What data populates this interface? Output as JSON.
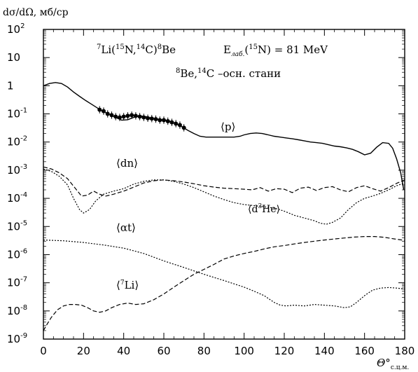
{
  "chart_data": {
    "type": "line",
    "title": "",
    "ylabel": {
      "main": "dσ/dΩ, мб/ср"
    },
    "xlabel": {
      "main": "Θ°",
      "sub": "с.ц.м."
    },
    "xlim": [
      0,
      180
    ],
    "ylim": [
      1e-09,
      100
    ],
    "yscale": "log",
    "x_ticks": [
      0,
      20,
      40,
      60,
      80,
      100,
      120,
      140,
      160,
      180
    ],
    "y_ticks": [
      {
        "value": 1e-09,
        "base": "10",
        "exp": "-9"
      },
      {
        "value": 1e-08,
        "base": "10",
        "exp": "-8"
      },
      {
        "value": 1e-07,
        "base": "10",
        "exp": "-7"
      },
      {
        "value": 1e-06,
        "base": "10",
        "exp": "-6"
      },
      {
        "value": 1e-05,
        "base": "10",
        "exp": "-5"
      },
      {
        "value": 0.0001,
        "base": "10",
        "exp": "-4"
      },
      {
        "value": 0.001,
        "base": "10",
        "exp": "-3"
      },
      {
        "value": 0.01,
        "base": "10",
        "exp": "-2"
      },
      {
        "value": 0.1,
        "base": "10",
        "exp": "-1"
      },
      {
        "value": 1,
        "base": "1",
        "exp": ""
      },
      {
        "value": 10,
        "base": "10",
        "exp": ""
      },
      {
        "value": 100,
        "base": "10",
        "exp": "2"
      }
    ],
    "reaction": {
      "r1": "Li(",
      "r2": "N,",
      "r3": "C)",
      "r4": "Be",
      "s1": "7",
      "s2": "15",
      "s3": "14",
      "s4": "8"
    },
    "energy": {
      "e1": "E",
      "e1sub": "лаб.",
      "e2": "(",
      "e2sup": "15",
      "e3": "N)  =  81  MeV"
    },
    "states": {
      "s1sup": "8",
      "s1": "Be,",
      "s2sup": "14",
      "s2": "C  –осн. стани"
    },
    "curve_labels": [
      {
        "id": "p",
        "text": "⟨p⟩"
      },
      {
        "id": "dn",
        "text": "⟨dn⟩"
      },
      {
        "id": "d3he",
        "text1": "⟨d",
        "sup": "3",
        "text2": "He⟩"
      },
      {
        "id": "at",
        "text": "⟨αt⟩"
      },
      {
        "id": "li7",
        "text1": "⟨",
        "sup": "7",
        "text2": "Li⟩"
      }
    ],
    "series": [
      {
        "id": "p",
        "style": "solid",
        "points": [
          [
            0,
            1.0
          ],
          [
            3,
            1.2
          ],
          [
            6,
            1.3
          ],
          [
            9,
            1.2
          ],
          [
            12,
            0.9
          ],
          [
            15,
            0.6
          ],
          [
            18,
            0.42
          ],
          [
            21,
            0.3
          ],
          [
            24,
            0.22
          ],
          [
            27,
            0.16
          ],
          [
            30,
            0.12
          ],
          [
            33,
            0.095
          ],
          [
            36,
            0.075
          ],
          [
            39,
            0.06
          ],
          [
            42,
            0.062
          ],
          [
            45,
            0.075
          ],
          [
            48,
            0.085
          ],
          [
            51,
            0.08
          ],
          [
            54,
            0.07
          ],
          [
            57,
            0.065
          ],
          [
            60,
            0.06
          ],
          [
            63,
            0.055
          ],
          [
            66,
            0.045
          ],
          [
            69,
            0.035
          ],
          [
            72,
            0.026
          ],
          [
            75,
            0.02
          ],
          [
            78,
            0.016
          ],
          [
            81,
            0.015
          ],
          [
            85,
            0.015
          ],
          [
            90,
            0.015
          ],
          [
            95,
            0.015
          ],
          [
            98,
            0.016
          ],
          [
            100,
            0.018
          ],
          [
            103,
            0.02
          ],
          [
            106,
            0.021
          ],
          [
            109,
            0.02
          ],
          [
            112,
            0.018
          ],
          [
            115,
            0.016
          ],
          [
            118,
            0.015
          ],
          [
            121,
            0.014
          ],
          [
            124,
            0.013
          ],
          [
            127,
            0.012
          ],
          [
            130,
            0.011
          ],
          [
            133,
            0.01
          ],
          [
            136,
            0.0095
          ],
          [
            139,
            0.009
          ],
          [
            142,
            0.008
          ],
          [
            145,
            0.0072
          ],
          [
            148,
            0.0068
          ],
          [
            151,
            0.0062
          ],
          [
            154,
            0.0055
          ],
          [
            157,
            0.0045
          ],
          [
            160,
            0.0035
          ],
          [
            163,
            0.004
          ],
          [
            166,
            0.0065
          ],
          [
            169,
            0.0095
          ],
          [
            172,
            0.009
          ],
          [
            174,
            0.006
          ],
          [
            176,
            0.0025
          ],
          [
            178,
            0.0008
          ],
          [
            179.5,
            0.0002
          ]
        ]
      },
      {
        "id": "dn",
        "style": "dashed",
        "points": [
          [
            0,
            0.0013
          ],
          [
            4,
            0.0011
          ],
          [
            8,
            0.0008
          ],
          [
            12,
            0.0005
          ],
          [
            16,
            0.00022
          ],
          [
            19,
            0.00012
          ],
          [
            22,
            0.00013
          ],
          [
            25,
            0.00018
          ],
          [
            28,
            0.00014
          ],
          [
            31,
            0.00012
          ],
          [
            35,
            0.00014
          ],
          [
            40,
            0.00018
          ],
          [
            45,
            0.00025
          ],
          [
            50,
            0.00035
          ],
          [
            55,
            0.00042
          ],
          [
            60,
            0.00045
          ],
          [
            65,
            0.00042
          ],
          [
            70,
            0.00038
          ],
          [
            75,
            0.00033
          ],
          [
            80,
            0.00028
          ],
          [
            85,
            0.00025
          ],
          [
            90,
            0.00023
          ],
          [
            95,
            0.00022
          ],
          [
            100,
            0.00021
          ],
          [
            104,
            0.0002
          ],
          [
            108,
            0.00024
          ],
          [
            112,
            0.00018
          ],
          [
            116,
            0.00022
          ],
          [
            120,
            0.00021
          ],
          [
            124,
            0.00016
          ],
          [
            128,
            0.00023
          ],
          [
            132,
            0.00025
          ],
          [
            136,
            0.00019
          ],
          [
            140,
            0.00024
          ],
          [
            144,
            0.00026
          ],
          [
            148,
            0.0002
          ],
          [
            152,
            0.00017
          ],
          [
            156,
            0.00024
          ],
          [
            160,
            0.00028
          ],
          [
            164,
            0.00022
          ],
          [
            168,
            0.00018
          ],
          [
            172,
            0.00024
          ],
          [
            176,
            0.00034
          ],
          [
            180,
            0.00045
          ]
        ]
      },
      {
        "id": "d3he",
        "style": "dotted",
        "points": [
          [
            0,
            0.0011
          ],
          [
            4,
            0.0009
          ],
          [
            8,
            0.0006
          ],
          [
            12,
            0.0003
          ],
          [
            15,
            0.0001
          ],
          [
            18,
            4e-05
          ],
          [
            20,
            3e-05
          ],
          [
            23,
            4e-05
          ],
          [
            26,
            8e-05
          ],
          [
            30,
            0.00014
          ],
          [
            35,
            0.00018
          ],
          [
            40,
            0.00022
          ],
          [
            45,
            0.00032
          ],
          [
            50,
            0.0004
          ],
          [
            55,
            0.00045
          ],
          [
            60,
            0.00045
          ],
          [
            65,
            0.0004
          ],
          [
            70,
            0.00032
          ],
          [
            75,
            0.00024
          ],
          [
            80,
            0.00017
          ],
          [
            85,
            0.00012
          ],
          [
            90,
            9e-05
          ],
          [
            95,
            7e-05
          ],
          [
            100,
            6e-05
          ],
          [
            105,
            5.5e-05
          ],
          [
            110,
            5e-05
          ],
          [
            115,
            4.5e-05
          ],
          [
            120,
            3.5e-05
          ],
          [
            125,
            2.5e-05
          ],
          [
            130,
            2e-05
          ],
          [
            135,
            1.6e-05
          ],
          [
            138,
            1.3e-05
          ],
          [
            141,
            1.2e-05
          ],
          [
            144,
            1.4e-05
          ],
          [
            148,
            2e-05
          ],
          [
            152,
            4e-05
          ],
          [
            156,
            7e-05
          ],
          [
            160,
            0.0001
          ],
          [
            164,
            0.00012
          ],
          [
            168,
            0.00015
          ],
          [
            172,
            0.0002
          ],
          [
            176,
            0.00028
          ],
          [
            180,
            0.00035
          ]
        ]
      },
      {
        "id": "at",
        "style": "dotted",
        "points": [
          [
            0,
            3.3e-06
          ],
          [
            10,
            3.1e-06
          ],
          [
            20,
            2.7e-06
          ],
          [
            30,
            2.2e-06
          ],
          [
            40,
            1.7e-06
          ],
          [
            50,
            1.1e-06
          ],
          [
            60,
            6e-07
          ],
          [
            70,
            3.5e-07
          ],
          [
            80,
            2e-07
          ],
          [
            90,
            1.2e-07
          ],
          [
            100,
            7e-08
          ],
          [
            105,
            5e-08
          ],
          [
            110,
            3.5e-08
          ],
          [
            115,
            2e-08
          ],
          [
            118,
            1.6e-08
          ],
          [
            121,
            1.5e-08
          ],
          [
            125,
            1.6e-08
          ],
          [
            130,
            1.5e-08
          ],
          [
            135,
            1.7e-08
          ],
          [
            140,
            1.6e-08
          ],
          [
            145,
            1.5e-08
          ],
          [
            150,
            1.3e-08
          ],
          [
            153,
            1.4e-08
          ],
          [
            156,
            2e-08
          ],
          [
            160,
            3.5e-08
          ],
          [
            164,
            5.5e-08
          ],
          [
            168,
            6.5e-08
          ],
          [
            172,
            6.8e-08
          ],
          [
            176,
            6.5e-08
          ],
          [
            180,
            6e-08
          ]
        ]
      },
      {
        "id": "li7",
        "style": "dashed",
        "points": [
          [
            0,
            2e-09
          ],
          [
            2,
            3.5e-09
          ],
          [
            4,
            6e-09
          ],
          [
            7,
            1.1e-08
          ],
          [
            10,
            1.5e-08
          ],
          [
            13,
            1.7e-08
          ],
          [
            16,
            1.7e-08
          ],
          [
            19,
            1.6e-08
          ],
          [
            22,
            1.3e-08
          ],
          [
            25,
            1e-08
          ],
          [
            28,
            9e-09
          ],
          [
            31,
            1e-08
          ],
          [
            34,
            1.3e-08
          ],
          [
            38,
            1.7e-08
          ],
          [
            42,
            1.9e-08
          ],
          [
            46,
            1.7e-08
          ],
          [
            50,
            1.8e-08
          ],
          [
            55,
            2.5e-08
          ],
          [
            60,
            4e-08
          ],
          [
            65,
            7e-08
          ],
          [
            70,
            1.2e-07
          ],
          [
            75,
            2e-07
          ],
          [
            80,
            3e-07
          ],
          [
            85,
            4.5e-07
          ],
          [
            90,
            7e-07
          ],
          [
            95,
            9e-07
          ],
          [
            100,
            1.1e-06
          ],
          [
            105,
            1.3e-06
          ],
          [
            110,
            1.6e-06
          ],
          [
            115,
            1.9e-06
          ],
          [
            120,
            2.1e-06
          ],
          [
            125,
            2.4e-06
          ],
          [
            130,
            2.7e-06
          ],
          [
            135,
            3e-06
          ],
          [
            140,
            3.3e-06
          ],
          [
            145,
            3.6e-06
          ],
          [
            150,
            3.9e-06
          ],
          [
            155,
            4.2e-06
          ],
          [
            160,
            4.4e-06
          ],
          [
            165,
            4.4e-06
          ],
          [
            170,
            4.1e-06
          ],
          [
            175,
            3.6e-06
          ],
          [
            180,
            3.2e-06
          ]
        ]
      }
    ],
    "data_points": [
      [
        28,
        0.14
      ],
      [
        30,
        0.125
      ],
      [
        32,
        0.1
      ],
      [
        34,
        0.09
      ],
      [
        36,
        0.08
      ],
      [
        38,
        0.075
      ],
      [
        40,
        0.08
      ],
      [
        42,
        0.085
      ],
      [
        44,
        0.09
      ],
      [
        46,
        0.085
      ],
      [
        48,
        0.08
      ],
      [
        50,
        0.075
      ],
      [
        52,
        0.07
      ],
      [
        54,
        0.068
      ],
      [
        56,
        0.065
      ],
      [
        58,
        0.06
      ],
      [
        60,
        0.06
      ],
      [
        62,
        0.055
      ],
      [
        64,
        0.05
      ],
      [
        66,
        0.045
      ],
      [
        68,
        0.04
      ],
      [
        70,
        0.032
      ]
    ]
  }
}
